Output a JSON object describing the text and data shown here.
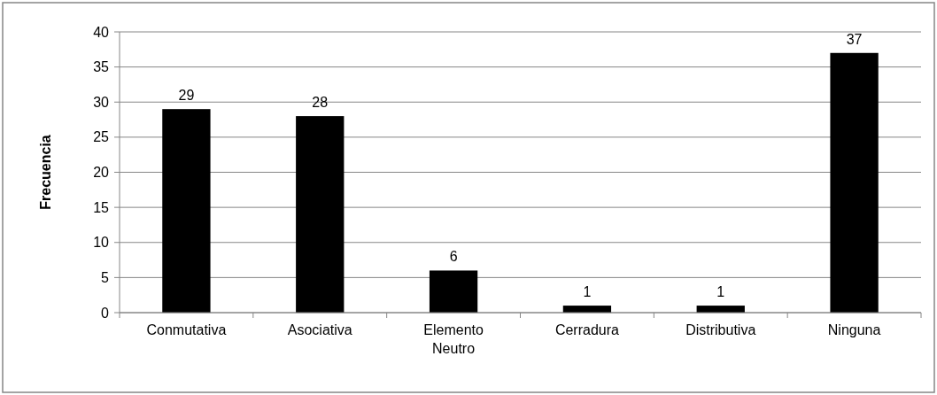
{
  "chart_data": {
    "type": "bar",
    "ylabel": "Frecuencia",
    "categories": [
      "Conmutativa",
      "Asociativa",
      "Elemento Neutro",
      "Cerradura",
      "Distributiva",
      "Ninguna"
    ],
    "values": [
      29,
      28,
      6,
      1,
      1,
      37
    ],
    "color": "#000000",
    "ylim": [
      0,
      40
    ],
    "yticks": [
      0,
      5,
      10,
      15,
      20,
      25,
      30,
      35,
      40
    ],
    "grid": "y",
    "data_labels": true
  }
}
